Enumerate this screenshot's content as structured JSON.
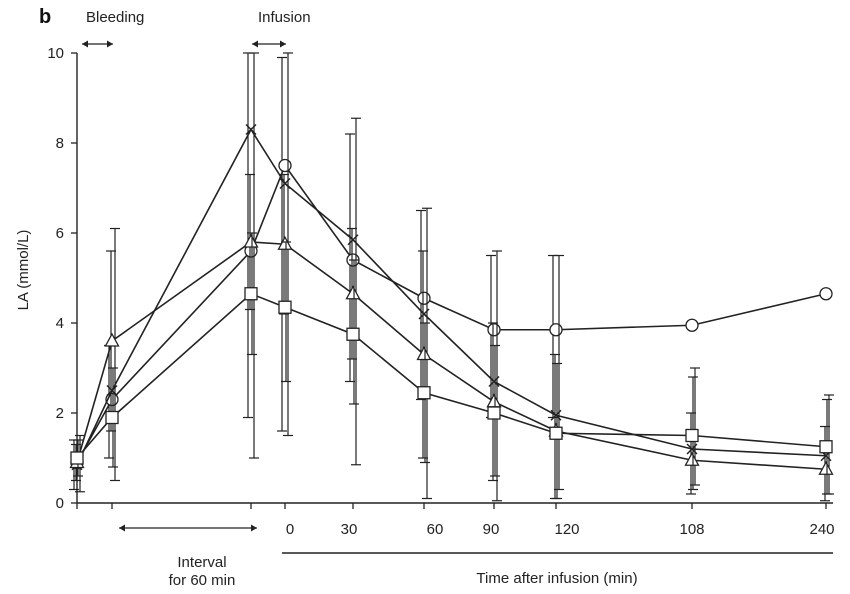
{
  "panel_label": "b",
  "annotations": {
    "bleeding": "Bleeding",
    "infusion": "Infusion",
    "interval_line1": "Interval",
    "interval_line2": "for 60 min"
  },
  "chart_data": {
    "type": "line",
    "ylabel": "LA (mmol/L)",
    "xlabel": "Time after infusion (min)",
    "ylim": [
      0,
      10
    ],
    "yticks": [
      "0",
      "2",
      "4",
      "6",
      "8",
      "10"
    ],
    "x_tick_labels": [
      "0",
      "30",
      "60",
      "90",
      "120",
      "108",
      "240"
    ],
    "grid": false,
    "series": [
      {
        "marker": "circle",
        "values": [
          0.9,
          2.3,
          5.6,
          7.5,
          5.4,
          4.55,
          3.85,
          3.85,
          3.95,
          4.65
        ],
        "error_high": [
          1.4,
          3.5,
          10.0,
          9.9,
          8.2,
          6.5,
          5.5,
          5.5,
          null,
          null
        ],
        "error_low": [
          0.3,
          1.0,
          1.9,
          1.6,
          2.7,
          2.3,
          1.9,
          1.9,
          null,
          null
        ]
      },
      {
        "marker": "x",
        "values": [
          0.85,
          2.5,
          8.3,
          7.1,
          5.85,
          4.2,
          2.7,
          1.95,
          1.2,
          1.05
        ],
        "error_high": [
          1.5,
          6.1,
          10.0,
          10.0,
          8.55,
          6.55,
          5.6,
          5.5,
          3.0,
          2.4
        ],
        "error_low": [
          0.25,
          0.5,
          1.0,
          1.5,
          0.85,
          0.1,
          0.05,
          0.3,
          0.4,
          0.2
        ]
      },
      {
        "marker": "triangle",
        "values": [
          0.9,
          3.6,
          5.8,
          5.75,
          4.65,
          3.3,
          2.25,
          1.6,
          0.95,
          0.75
        ],
        "error_high": [
          1.3,
          5.6,
          7.3,
          7.3,
          6.1,
          5.6,
          4.0,
          3.3,
          2.0,
          1.7
        ],
        "error_low": [
          0.5,
          1.6,
          4.3,
          4.2,
          3.2,
          1.0,
          0.5,
          0.1,
          0.2,
          0.05
        ]
      },
      {
        "marker": "square",
        "values": [
          1.0,
          1.9,
          4.65,
          4.35,
          3.75,
          2.45,
          2.0,
          1.55,
          1.5,
          1.25
        ],
        "error_high": [
          1.4,
          3.0,
          6.0,
          5.8,
          5.4,
          4.0,
          3.5,
          3.1,
          2.8,
          2.3
        ],
        "error_low": [
          0.6,
          0.8,
          3.3,
          2.7,
          2.2,
          0.9,
          0.6,
          0.1,
          0.3,
          0.2
        ]
      }
    ]
  }
}
